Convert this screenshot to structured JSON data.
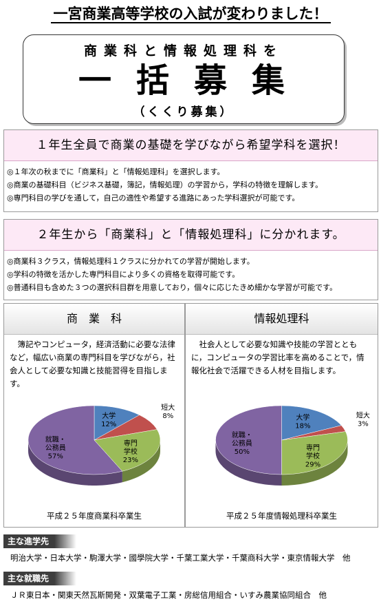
{
  "header": {
    "title": "一宮商業高等学校の入試が変わりました！",
    "line1": "商業科と情報処理科を",
    "line2": "一括募集",
    "line3": "（くくり募集）"
  },
  "section1": {
    "heading": "１年生全員で商業の基礎を学びながら希望学科を選択！",
    "items": [
      "◎１年次の秋までに「商業科」と「情報処理科」を選択します。",
      "◎商業の基礎科目（ビジネス基礎，簿記，情報処理）の学習から，学科の特徴を理解します。",
      "◎専門科目の学びを通して，自己の適性や希望する進路にあった学科選択が可能です。"
    ]
  },
  "section2": {
    "heading": "２年生から「商業科」と「情報処理科」に分かれます。",
    "items": [
      "◎商業科３クラス，情報処理科１クラスに分かれての学習が開始します。",
      "◎学科の特徴を活かした専門科目により多くの資格を取得可能です。",
      "◎普通科目も含めた３つの選択科目群を用意しており，個々に応じたきめ細かな学習が可能です。"
    ]
  },
  "columns": [
    {
      "title": "商　業　科",
      "description": "　簿記やコンピュータ，経済活動に必要な法律など，幅広い商業の専門科目を学びながら，社会人として必要な知識と技能習得を目指します。",
      "chart": {
        "type": "pie",
        "categories": [
          [
            "大学"
          ],
          [
            "短大"
          ],
          [
            "専門",
            "学校"
          ],
          [
            "就職・",
            "公務員"
          ]
        ],
        "values": [
          12,
          8,
          23,
          57
        ],
        "value_labels": [
          "12%",
          "8%",
          "23%",
          "57%"
        ],
        "colors": [
          "#4f81bd",
          "#c0504d",
          "#9bbb59",
          "#8064a2"
        ],
        "caption": "平成２５年度商業科卒業生"
      }
    },
    {
      "title": "情報処理科",
      "description": "　社会人として必要な知識や技能の学習とともに，コンピュータの学習比率を高めることで，情報化社会で活躍できる人材を目指します。",
      "chart": {
        "type": "pie",
        "categories": [
          [
            "大学"
          ],
          [
            "短大"
          ],
          [
            "専門",
            "学校"
          ],
          [
            "就職・",
            "公務員"
          ]
        ],
        "values": [
          18,
          3,
          29,
          50
        ],
        "value_labels": [
          "18%",
          "3%",
          "29%",
          "50%"
        ],
        "colors": [
          "#4f81bd",
          "#c0504d",
          "#9bbb59",
          "#8064a2"
        ],
        "caption": "平成２５年度情報処理科卒業生"
      }
    }
  ],
  "destinations": {
    "label": "主な進学先",
    "text": "明治大学・日本大学・駒澤大学・國學院大学・千葉工業大学・千葉商科大学・東京情報大学　他"
  },
  "employment": {
    "label": "主な就職先",
    "text": "ＪＲ東日本・関東天然瓦斯開発・双葉電子工業・房総信用組合・いすみ農業協同組合　他"
  }
}
